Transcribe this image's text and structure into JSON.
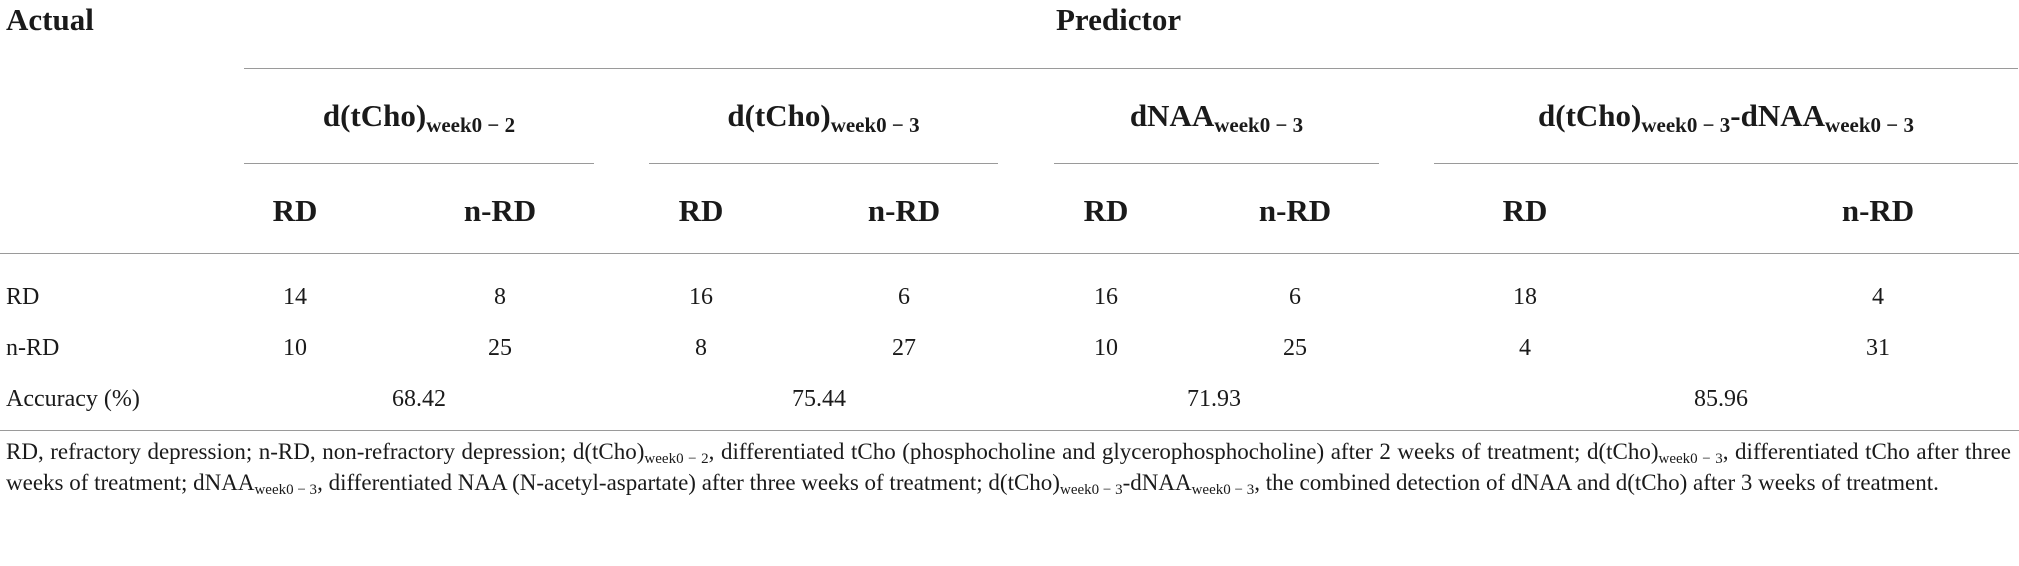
{
  "table": {
    "actual_header": "Actual",
    "predictor_header": "Predictor",
    "predictors": [
      {
        "main": "d(tCho)",
        "sub": "week0 − 2",
        "tail_main": "",
        "tail_sub": ""
      },
      {
        "main": "d(tCho)",
        "sub": "week0 − 3",
        "tail_main": "",
        "tail_sub": ""
      },
      {
        "main": "dNAA",
        "sub": "week0 − 3",
        "tail_main": "",
        "tail_sub": ""
      },
      {
        "main": "d(tCho)",
        "sub": "week0 − 3",
        "tail_main": "-dNAA",
        "tail_sub": "week0 − 3"
      }
    ],
    "subcols": [
      "RD",
      "n-RD",
      "RD",
      "n-RD",
      "RD",
      "n-RD",
      "RD",
      "n-RD"
    ],
    "rows": [
      {
        "label": "RD",
        "values": [
          "14",
          "8",
          "16",
          "6",
          "16",
          "6",
          "18",
          "4"
        ]
      },
      {
        "label": "n-RD",
        "values": [
          "10",
          "25",
          "8",
          "27",
          "10",
          "25",
          "4",
          "31"
        ]
      }
    ],
    "accuracy": {
      "label": "Accuracy (%)",
      "values": [
        "68.42",
        "75.44",
        "71.93",
        "85.96"
      ]
    }
  },
  "footnote": {
    "p1": "RD, refractory depression; n-RD, non-refractory depression; d(tCho)",
    "s1": "week0 − 2",
    "p2": ", differentiated tCho (phosphocholine and glycerophosphocholine) after 2 weeks of treatment; d(tCho)",
    "s2": "week0 − 3",
    "p3": ", differentiated tCho after three weeks of treatment; dNAA",
    "s3": "week0 − 3",
    "p4": ", differentiated NAA (N-acetyl-aspartate) after three weeks of treatment; d(tCho)",
    "s4": "week0 − 3",
    "p5": "-dNAA",
    "s5": "week0 − 3",
    "p6": ", the combined detection of dNAA and d(tCho) after 3 weeks of treatment."
  }
}
